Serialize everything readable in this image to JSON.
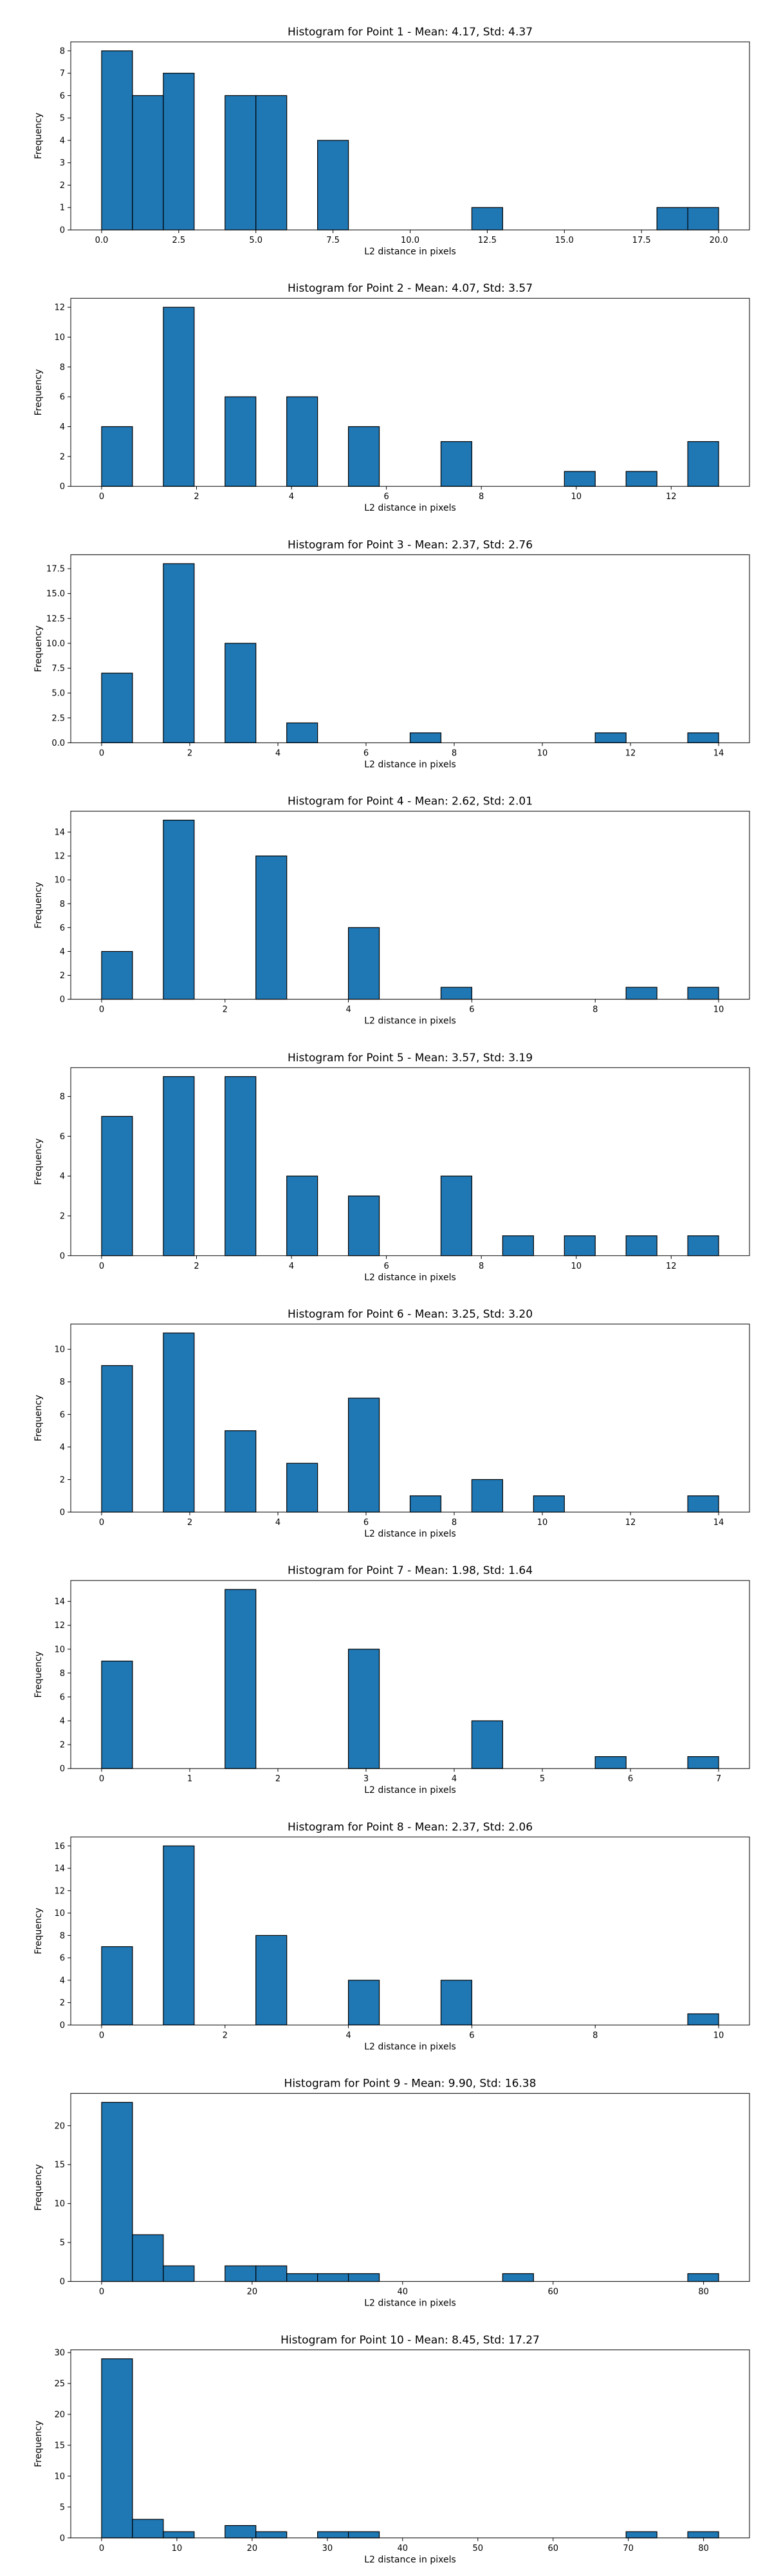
{
  "colors": {
    "bar_fill": "#1f77b4",
    "bar_edge": "#000000",
    "frame": "#000000"
  },
  "chart_data": [
    {
      "type": "bar",
      "title": "Histogram for Point 1 - Mean: 4.17, Std: 4.37",
      "xlabel": "L2 distance in pixels",
      "ylabel": "Frequency",
      "xlim": [
        -1.0,
        21.0
      ],
      "ylim": [
        0,
        8.4
      ],
      "xticks": [
        0.0,
        2.5,
        5.0,
        7.5,
        10.0,
        12.5,
        15.0,
        17.5,
        20.0
      ],
      "xtick_labels": [
        "0.0",
        "2.5",
        "5.0",
        "7.5",
        "10.0",
        "12.5",
        "15.0",
        "17.5",
        "20.0"
      ],
      "yticks": [
        0,
        1,
        2,
        3,
        4,
        5,
        6,
        7,
        8
      ],
      "ytick_labels": [
        "0",
        "1",
        "2",
        "3",
        "4",
        "5",
        "6",
        "7",
        "8"
      ],
      "bins": [
        {
          "x0": 0.0,
          "x1": 1.0,
          "value": 8
        },
        {
          "x0": 1.0,
          "x1": 2.0,
          "value": 6
        },
        {
          "x0": 2.0,
          "x1": 3.0,
          "value": 7
        },
        {
          "x0": 4.0,
          "x1": 5.0,
          "value": 6
        },
        {
          "x0": 5.0,
          "x1": 6.0,
          "value": 6
        },
        {
          "x0": 7.0,
          "x1": 8.0,
          "value": 4
        },
        {
          "x0": 12.0,
          "x1": 13.0,
          "value": 1
        },
        {
          "x0": 18.0,
          "x1": 19.0,
          "value": 1
        },
        {
          "x0": 19.0,
          "x1": 20.0,
          "value": 1
        }
      ]
    },
    {
      "type": "bar",
      "title": "Histogram for Point 2 - Mean: 4.07, Std: 3.57",
      "xlabel": "L2 distance in pixels",
      "ylabel": "Frequency",
      "xlim": [
        -0.65,
        13.65
      ],
      "ylim": [
        0,
        12.6
      ],
      "xticks": [
        0,
        2,
        4,
        6,
        8,
        10,
        12
      ],
      "xtick_labels": [
        "0",
        "2",
        "4",
        "6",
        "8",
        "10",
        "12"
      ],
      "yticks": [
        0,
        2,
        4,
        6,
        8,
        10,
        12
      ],
      "ytick_labels": [
        "0",
        "2",
        "4",
        "6",
        "8",
        "10",
        "12"
      ],
      "bins": [
        {
          "x0": 0.0,
          "x1": 0.65,
          "value": 4
        },
        {
          "x0": 1.3,
          "x1": 1.95,
          "value": 12
        },
        {
          "x0": 2.6,
          "x1": 3.25,
          "value": 6
        },
        {
          "x0": 3.9,
          "x1": 4.55,
          "value": 6
        },
        {
          "x0": 5.2,
          "x1": 5.85,
          "value": 4
        },
        {
          "x0": 7.15,
          "x1": 7.8,
          "value": 3
        },
        {
          "x0": 9.75,
          "x1": 10.4,
          "value": 1
        },
        {
          "x0": 11.05,
          "x1": 11.7,
          "value": 1
        },
        {
          "x0": 12.35,
          "x1": 13.0,
          "value": 3
        }
      ]
    },
    {
      "type": "bar",
      "title": "Histogram for Point 3 - Mean: 2.37, Std: 2.76",
      "xlabel": "L2 distance in pixels",
      "ylabel": "Frequency",
      "xlim": [
        -0.7,
        14.7
      ],
      "ylim": [
        0,
        18.9
      ],
      "xticks": [
        0,
        2,
        4,
        6,
        8,
        10,
        12,
        14
      ],
      "xtick_labels": [
        "0",
        "2",
        "4",
        "6",
        "8",
        "10",
        "12",
        "14"
      ],
      "yticks": [
        0,
        2.5,
        5.0,
        7.5,
        10.0,
        12.5,
        15.0,
        17.5
      ],
      "ytick_labels": [
        "0.0",
        "2.5",
        "5.0",
        "7.5",
        "10.0",
        "12.5",
        "15.0",
        "17.5"
      ],
      "bins": [
        {
          "x0": 0.0,
          "x1": 0.7,
          "value": 7
        },
        {
          "x0": 1.4,
          "x1": 2.1,
          "value": 18
        },
        {
          "x0": 2.8,
          "x1": 3.5,
          "value": 10
        },
        {
          "x0": 4.2,
          "x1": 4.9,
          "value": 2
        },
        {
          "x0": 7.0,
          "x1": 7.7,
          "value": 1
        },
        {
          "x0": 11.2,
          "x1": 11.9,
          "value": 1
        },
        {
          "x0": 13.3,
          "x1": 14.0,
          "value": 1
        }
      ]
    },
    {
      "type": "bar",
      "title": "Histogram for Point 4 - Mean: 2.62, Std: 2.01",
      "xlabel": "L2 distance in pixels",
      "ylabel": "Frequency",
      "xlim": [
        -0.5,
        10.5
      ],
      "ylim": [
        0,
        15.75
      ],
      "xticks": [
        0,
        2,
        4,
        6,
        8,
        10
      ],
      "xtick_labels": [
        "0",
        "2",
        "4",
        "6",
        "8",
        "10"
      ],
      "yticks": [
        0,
        2,
        4,
        6,
        8,
        10,
        12,
        14
      ],
      "ytick_labels": [
        "0",
        "2",
        "4",
        "6",
        "8",
        "10",
        "12",
        "14"
      ],
      "bins": [
        {
          "x0": 0.0,
          "x1": 0.5,
          "value": 4
        },
        {
          "x0": 1.0,
          "x1": 1.5,
          "value": 15
        },
        {
          "x0": 2.5,
          "x1": 3.0,
          "value": 12
        },
        {
          "x0": 4.0,
          "x1": 4.5,
          "value": 6
        },
        {
          "x0": 5.5,
          "x1": 6.0,
          "value": 1
        },
        {
          "x0": 8.5,
          "x1": 9.0,
          "value": 1
        },
        {
          "x0": 9.5,
          "x1": 10.0,
          "value": 1
        }
      ]
    },
    {
      "type": "bar",
      "title": "Histogram for Point 5 - Mean: 3.57, Std: 3.19",
      "xlabel": "L2 distance in pixels",
      "ylabel": "Frequency",
      "xlim": [
        -0.65,
        13.65
      ],
      "ylim": [
        0,
        9.45
      ],
      "xticks": [
        0,
        2,
        4,
        6,
        8,
        10,
        12
      ],
      "xtick_labels": [
        "0",
        "2",
        "4",
        "6",
        "8",
        "10",
        "12"
      ],
      "yticks": [
        0,
        2,
        4,
        6,
        8
      ],
      "ytick_labels": [
        "0",
        "2",
        "4",
        "6",
        "8"
      ],
      "bins": [
        {
          "x0": 0.0,
          "x1": 0.65,
          "value": 7
        },
        {
          "x0": 1.3,
          "x1": 1.95,
          "value": 9
        },
        {
          "x0": 2.6,
          "x1": 3.25,
          "value": 9
        },
        {
          "x0": 3.9,
          "x1": 4.55,
          "value": 4
        },
        {
          "x0": 5.2,
          "x1": 5.85,
          "value": 3
        },
        {
          "x0": 7.15,
          "x1": 7.8,
          "value": 4
        },
        {
          "x0": 8.45,
          "x1": 9.1,
          "value": 1
        },
        {
          "x0": 9.75,
          "x1": 10.4,
          "value": 1
        },
        {
          "x0": 11.05,
          "x1": 11.7,
          "value": 1
        },
        {
          "x0": 12.35,
          "x1": 13.0,
          "value": 1
        }
      ]
    },
    {
      "type": "bar",
      "title": "Histogram for Point 6 - Mean: 3.25, Std: 3.20",
      "xlabel": "L2 distance in pixels",
      "ylabel": "Frequency",
      "xlim": [
        -0.7,
        14.7
      ],
      "ylim": [
        0,
        11.55
      ],
      "xticks": [
        0,
        2,
        4,
        6,
        8,
        10,
        12,
        14
      ],
      "xtick_labels": [
        "0",
        "2",
        "4",
        "6",
        "8",
        "10",
        "12",
        "14"
      ],
      "yticks": [
        0,
        2,
        4,
        6,
        8,
        10
      ],
      "ytick_labels": [
        "0",
        "2",
        "4",
        "6",
        "8",
        "10"
      ],
      "bins": [
        {
          "x0": 0.0,
          "x1": 0.7,
          "value": 9
        },
        {
          "x0": 1.4,
          "x1": 2.1,
          "value": 11
        },
        {
          "x0": 2.8,
          "x1": 3.5,
          "value": 5
        },
        {
          "x0": 4.2,
          "x1": 4.9,
          "value": 3
        },
        {
          "x0": 5.6,
          "x1": 6.3,
          "value": 7
        },
        {
          "x0": 7.0,
          "x1": 7.7,
          "value": 1
        },
        {
          "x0": 8.4,
          "x1": 9.1,
          "value": 2
        },
        {
          "x0": 9.8,
          "x1": 10.5,
          "value": 1
        },
        {
          "x0": 13.3,
          "x1": 14.0,
          "value": 1
        }
      ]
    },
    {
      "type": "bar",
      "title": "Histogram for Point 7 - Mean: 1.98, Std: 1.64",
      "xlabel": "L2 distance in pixels",
      "ylabel": "Frequency",
      "xlim": [
        -0.35,
        7.35
      ],
      "ylim": [
        0,
        15.75
      ],
      "xticks": [
        0,
        1,
        2,
        3,
        4,
        5,
        6,
        7
      ],
      "xtick_labels": [
        "0",
        "1",
        "2",
        "3",
        "4",
        "5",
        "6",
        "7"
      ],
      "yticks": [
        0,
        2,
        4,
        6,
        8,
        10,
        12,
        14
      ],
      "ytick_labels": [
        "0",
        "2",
        "4",
        "6",
        "8",
        "10",
        "12",
        "14"
      ],
      "bins": [
        {
          "x0": 0.0,
          "x1": 0.35,
          "value": 9
        },
        {
          "x0": 1.4,
          "x1": 1.75,
          "value": 15
        },
        {
          "x0": 2.8,
          "x1": 3.15,
          "value": 10
        },
        {
          "x0": 4.2,
          "x1": 4.55,
          "value": 4
        },
        {
          "x0": 5.6,
          "x1": 5.95,
          "value": 1
        },
        {
          "x0": 6.65,
          "x1": 7.0,
          "value": 1
        }
      ]
    },
    {
      "type": "bar",
      "title": "Histogram for Point 8 - Mean: 2.37, Std: 2.06",
      "xlabel": "L2 distance in pixels",
      "ylabel": "Frequency",
      "xlim": [
        -0.5,
        10.5
      ],
      "ylim": [
        0,
        16.8
      ],
      "xticks": [
        0,
        2,
        4,
        6,
        8,
        10
      ],
      "xtick_labels": [
        "0",
        "2",
        "4",
        "6",
        "8",
        "10"
      ],
      "yticks": [
        0,
        2,
        4,
        6,
        8,
        10,
        12,
        14,
        16
      ],
      "ytick_labels": [
        "0",
        "2",
        "4",
        "6",
        "8",
        "10",
        "12",
        "14",
        "16"
      ],
      "bins": [
        {
          "x0": 0.0,
          "x1": 0.5,
          "value": 7
        },
        {
          "x0": 1.0,
          "x1": 1.5,
          "value": 16
        },
        {
          "x0": 2.5,
          "x1": 3.0,
          "value": 8
        },
        {
          "x0": 4.0,
          "x1": 4.5,
          "value": 4
        },
        {
          "x0": 5.5,
          "x1": 6.0,
          "value": 4
        },
        {
          "x0": 9.5,
          "x1": 10.0,
          "value": 1
        }
      ]
    },
    {
      "type": "bar",
      "title": "Histogram for Point 9 - Mean: 9.90, Std: 16.38",
      "xlabel": "L2 distance in pixels",
      "ylabel": "Frequency",
      "xlim": [
        -4.1,
        86.1
      ],
      "ylim": [
        0,
        24.15
      ],
      "xticks": [
        0,
        20,
        40,
        60,
        80
      ],
      "xtick_labels": [
        "0",
        "20",
        "40",
        "60",
        "80"
      ],
      "yticks": [
        0,
        5,
        10,
        15,
        20
      ],
      "ytick_labels": [
        "0",
        "5",
        "10",
        "15",
        "20"
      ],
      "bins": [
        {
          "x0": 0.0,
          "x1": 4.1,
          "value": 23
        },
        {
          "x0": 4.1,
          "x1": 8.2,
          "value": 6
        },
        {
          "x0": 8.2,
          "x1": 12.3,
          "value": 2
        },
        {
          "x0": 16.4,
          "x1": 20.5,
          "value": 2
        },
        {
          "x0": 20.5,
          "x1": 24.6,
          "value": 2
        },
        {
          "x0": 24.6,
          "x1": 28.7,
          "value": 1
        },
        {
          "x0": 28.7,
          "x1": 32.8,
          "value": 1
        },
        {
          "x0": 32.8,
          "x1": 36.9,
          "value": 1
        },
        {
          "x0": 53.3,
          "x1": 57.4,
          "value": 1
        },
        {
          "x0": 77.9,
          "x1": 82.0,
          "value": 1
        }
      ]
    },
    {
      "type": "bar",
      "title": "Histogram for Point 10 - Mean: 8.45, Std: 17.27",
      "xlabel": "L2 distance in pixels",
      "ylabel": "Frequency",
      "xlim": [
        -4.1,
        86.1
      ],
      "ylim": [
        0,
        30.45
      ],
      "xticks": [
        0,
        10,
        20,
        30,
        40,
        50,
        60,
        70,
        80
      ],
      "xtick_labels": [
        "0",
        "10",
        "20",
        "30",
        "40",
        "50",
        "60",
        "70",
        "80"
      ],
      "yticks": [
        0,
        5,
        10,
        15,
        20,
        25,
        30
      ],
      "ytick_labels": [
        "0",
        "5",
        "10",
        "15",
        "20",
        "25",
        "30"
      ],
      "bins": [
        {
          "x0": 0.0,
          "x1": 4.1,
          "value": 29
        },
        {
          "x0": 4.1,
          "x1": 8.2,
          "value": 3
        },
        {
          "x0": 8.2,
          "x1": 12.3,
          "value": 1
        },
        {
          "x0": 16.4,
          "x1": 20.5,
          "value": 2
        },
        {
          "x0": 20.5,
          "x1": 24.6,
          "value": 1
        },
        {
          "x0": 28.7,
          "x1": 32.8,
          "value": 1
        },
        {
          "x0": 32.8,
          "x1": 36.9,
          "value": 1
        },
        {
          "x0": 69.7,
          "x1": 73.8,
          "value": 1
        },
        {
          "x0": 77.9,
          "x1": 82.0,
          "value": 1
        }
      ]
    }
  ]
}
